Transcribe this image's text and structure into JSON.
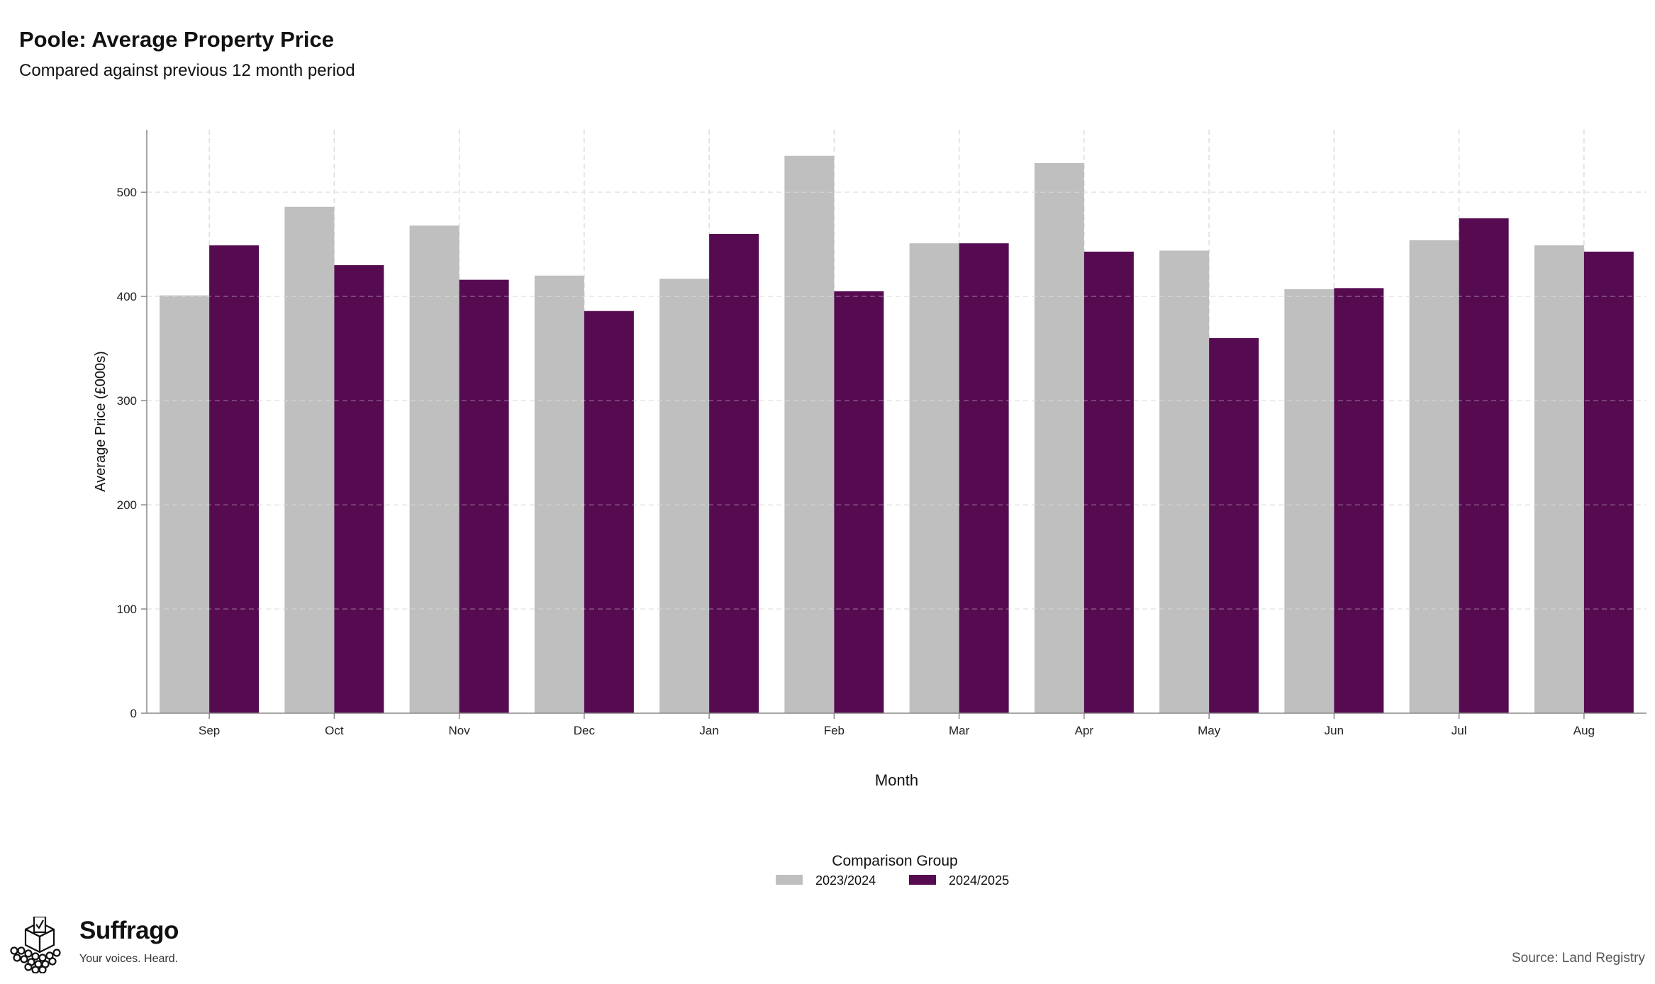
{
  "source": "Source: Land Registry",
  "logo": {
    "name": "Suffrago",
    "tagline": "Your voices. Heard."
  },
  "chart_data": {
    "type": "bar",
    "title": "Poole: Average Property Price",
    "subtitle": "Compared against previous 12 month period",
    "xlabel": "Month",
    "ylabel": "Average Price (£000s)",
    "categories": [
      "Sep",
      "Oct",
      "Nov",
      "Dec",
      "Jan",
      "Feb",
      "Mar",
      "Apr",
      "May",
      "Jun",
      "Jul",
      "Aug"
    ],
    "yticks": [
      0,
      100,
      200,
      300,
      400,
      500
    ],
    "ylim": [
      0,
      560
    ],
    "grid": true,
    "legend_title": "Comparison Group",
    "legend_position": "bottom",
    "series": [
      {
        "name": "2023/2024",
        "color": "#bfbfbf",
        "values": [
          401,
          486,
          468,
          420,
          417,
          535,
          451,
          528,
          444,
          407,
          454,
          449
        ]
      },
      {
        "name": "2024/2025",
        "color": "#560b51",
        "values": [
          449,
          430,
          416,
          386,
          460,
          405,
          451,
          443,
          360,
          408,
          475,
          443
        ]
      }
    ]
  }
}
